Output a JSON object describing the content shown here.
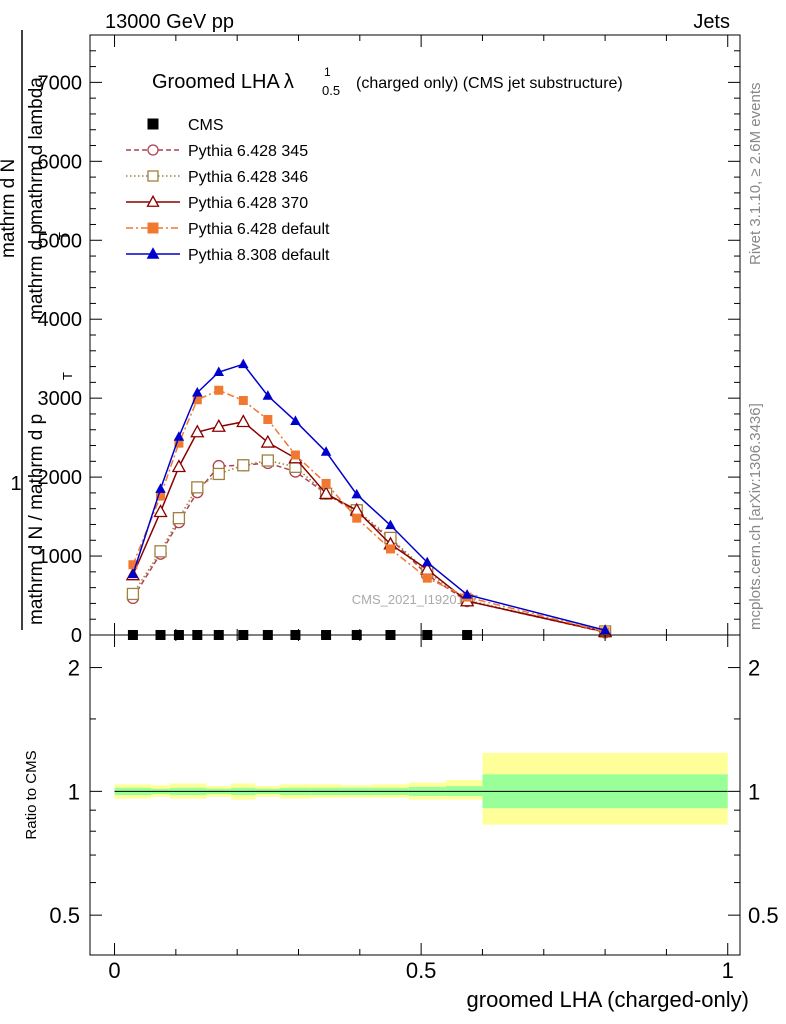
{
  "header": {
    "energy_label": "13000 GeV pp",
    "category_label": "Jets"
  },
  "side_labels": {
    "rivet": "Rivet 3.1.10, ≥ 2.6M events",
    "mcplots": "mcplots.cern.ch [arXiv:1306.3436]"
  },
  "watermark": "CMS_2021_I1920187",
  "chart_data": [
    {
      "type": "scatter",
      "title_main": "Groomed LHA",
      "title_lambda": "λ",
      "title_sup": "1",
      "title_sub": "0.5",
      "title_rest": "(charged only) (CMS jet substructure)",
      "ylabel_prefix": "1",
      "ylabel_line1": "mathrm d N / mathrm d p",
      "ylabel_line2": "mathrm d N",
      "ylabel_line3": "mathrm d p",
      "ylabel_line4": "mathrm d lambda",
      "ylabel_sub": "T",
      "xlim": [
        -0.04,
        1.02
      ],
      "ylim": [
        0,
        7600
      ],
      "y_ticks": [
        0,
        1000,
        2000,
        3000,
        4000,
        5000,
        6000,
        7000
      ],
      "y_tick_labels": [
        "0",
        "1000",
        "2000",
        "3000",
        "4000",
        "5000",
        "6000",
        "7000"
      ],
      "legend_position": "top-left",
      "series": [
        {
          "name": "CMS",
          "color": "#000000",
          "marker": "filled-square",
          "line": "none",
          "x": [
            0.03,
            0.075,
            0.105,
            0.135,
            0.17,
            0.21,
            0.25,
            0.295,
            0.345,
            0.395,
            0.45,
            0.51,
            0.575
          ],
          "y": [
            0,
            0,
            0,
            0,
            0,
            0,
            0,
            0,
            0,
            0,
            0,
            0,
            0
          ]
        },
        {
          "name": "Pythia 6.428 345",
          "color": "#b04050",
          "marker": "open-circle",
          "line": "dashed",
          "x": [
            0.03,
            0.075,
            0.105,
            0.135,
            0.17,
            0.21,
            0.25,
            0.295,
            0.345,
            0.395,
            0.45,
            0.51,
            0.575,
            0.8
          ],
          "y": [
            470,
            1030,
            1430,
            1810,
            2140,
            2150,
            2180,
            2070,
            1790,
            1550,
            1220,
            760,
            430,
            35
          ]
        },
        {
          "name": "Pythia 6.428 346",
          "color": "#a08040",
          "marker": "open-square",
          "line": "dotted",
          "x": [
            0.03,
            0.075,
            0.105,
            0.135,
            0.17,
            0.21,
            0.25,
            0.295,
            0.345,
            0.395,
            0.45,
            0.51,
            0.575,
            0.8
          ],
          "y": [
            520,
            1060,
            1480,
            1870,
            2040,
            2150,
            2210,
            2130,
            1790,
            1580,
            1230,
            800,
            440,
            45
          ]
        },
        {
          "name": "Pythia 6.428 370",
          "color": "#8b0000",
          "marker": "open-triangle",
          "line": "solid",
          "x": [
            0.03,
            0.075,
            0.105,
            0.135,
            0.17,
            0.21,
            0.25,
            0.295,
            0.345,
            0.395,
            0.45,
            0.51,
            0.575,
            0.8
          ],
          "y": [
            760,
            1560,
            2130,
            2570,
            2640,
            2700,
            2440,
            2240,
            1790,
            1580,
            1150,
            830,
            430,
            40
          ]
        },
        {
          "name": "Pythia 6.428 default",
          "color": "#f07830",
          "marker": "filled-square",
          "line": "dash-dot",
          "x": [
            0.03,
            0.075,
            0.105,
            0.135,
            0.17,
            0.21,
            0.25,
            0.295,
            0.345,
            0.395,
            0.45,
            0.51,
            0.575,
            0.8
          ],
          "y": [
            890,
            1760,
            2430,
            2980,
            3100,
            2970,
            2730,
            2280,
            1920,
            1480,
            1090,
            720,
            480,
            40
          ]
        },
        {
          "name": "Pythia 8.308 default",
          "color": "#0000cc",
          "marker": "filled-triangle",
          "line": "solid",
          "x": [
            0.03,
            0.075,
            0.105,
            0.135,
            0.17,
            0.21,
            0.25,
            0.295,
            0.345,
            0.395,
            0.45,
            0.51,
            0.575,
            0.8
          ],
          "y": [
            770,
            1850,
            2510,
            3070,
            3330,
            3430,
            3030,
            2710,
            2320,
            1780,
            1390,
            920,
            510,
            60
          ]
        }
      ]
    },
    {
      "type": "band",
      "ylabel": "Ratio to CMS",
      "xlabel": "groomed LHA (charged-only)",
      "xlim": [
        -0.04,
        1.02
      ],
      "ylim": [
        0.4,
        2.4
      ],
      "log_y": true,
      "x_ticks": [
        0,
        0.5,
        1
      ],
      "x_tick_labels": [
        "0",
        "0.5",
        "1"
      ],
      "y_ticks": [
        0.5,
        1,
        2
      ],
      "y_tick_labels": [
        "0.5",
        "1",
        "2"
      ],
      "reference_line": 1,
      "inner_band_color": "#99ff99",
      "outer_band_color": "#ffff99",
      "bins": [
        {
          "lo": 0.0,
          "hi": 0.06,
          "inner": [
            0.98,
            1.02
          ],
          "outer": [
            0.96,
            1.04
          ]
        },
        {
          "lo": 0.06,
          "hi": 0.09,
          "inner": [
            0.985,
            1.015
          ],
          "outer": [
            0.97,
            1.035
          ]
        },
        {
          "lo": 0.09,
          "hi": 0.12,
          "inner": [
            0.98,
            1.02
          ],
          "outer": [
            0.96,
            1.045
          ]
        },
        {
          "lo": 0.12,
          "hi": 0.15,
          "inner": [
            0.98,
            1.02
          ],
          "outer": [
            0.96,
            1.045
          ]
        },
        {
          "lo": 0.15,
          "hi": 0.19,
          "inner": [
            0.985,
            1.015
          ],
          "outer": [
            0.97,
            1.03
          ]
        },
        {
          "lo": 0.19,
          "hi": 0.23,
          "inner": [
            0.98,
            1.02
          ],
          "outer": [
            0.955,
            1.045
          ]
        },
        {
          "lo": 0.23,
          "hi": 0.27,
          "inner": [
            0.985,
            1.015
          ],
          "outer": [
            0.97,
            1.03
          ]
        },
        {
          "lo": 0.27,
          "hi": 0.32,
          "inner": [
            0.98,
            1.02
          ],
          "outer": [
            0.96,
            1.04
          ]
        },
        {
          "lo": 0.32,
          "hi": 0.37,
          "inner": [
            0.98,
            1.02
          ],
          "outer": [
            0.965,
            1.04
          ]
        },
        {
          "lo": 0.37,
          "hi": 0.42,
          "inner": [
            0.98,
            1.02
          ],
          "outer": [
            0.965,
            1.035
          ]
        },
        {
          "lo": 0.42,
          "hi": 0.48,
          "inner": [
            0.98,
            1.02
          ],
          "outer": [
            0.965,
            1.04
          ]
        },
        {
          "lo": 0.48,
          "hi": 0.54,
          "inner": [
            0.975,
            1.025
          ],
          "outer": [
            0.955,
            1.05
          ]
        },
        {
          "lo": 0.54,
          "hi": 0.6,
          "inner": [
            0.975,
            1.03
          ],
          "outer": [
            0.955,
            1.065
          ]
        },
        {
          "lo": 0.6,
          "hi": 1.0,
          "inner": [
            0.91,
            1.1
          ],
          "outer": [
            0.83,
            1.24
          ]
        }
      ]
    }
  ]
}
